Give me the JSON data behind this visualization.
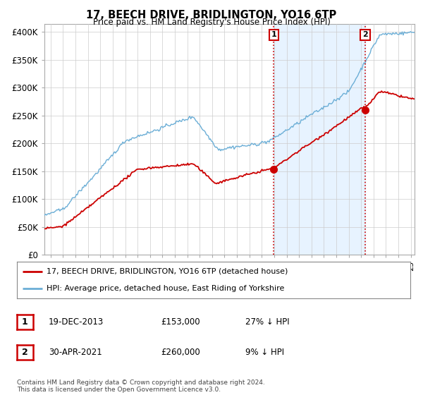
{
  "title": "17, BEECH DRIVE, BRIDLINGTON, YO16 6TP",
  "subtitle": "Price paid vs. HM Land Registry's House Price Index (HPI)",
  "ylabel_ticks": [
    "£0",
    "£50K",
    "£100K",
    "£150K",
    "£200K",
    "£250K",
    "£300K",
    "£350K",
    "£400K"
  ],
  "ytick_values": [
    0,
    50000,
    100000,
    150000,
    200000,
    250000,
    300000,
    350000,
    400000
  ],
  "ylim": [
    0,
    415000
  ],
  "xlim_start": 1995.5,
  "xlim_end": 2025.3,
  "hpi_color": "#6baed6",
  "hpi_fill_color": "#ddeeff",
  "price_color": "#cc0000",
  "vline_color": "#cc0000",
  "marker1_date": 2013.96,
  "marker1_price": 153000,
  "marker2_date": 2021.33,
  "marker2_price": 260000,
  "legend_line1": "17, BEECH DRIVE, BRIDLINGTON, YO16 6TP (detached house)",
  "legend_line2": "HPI: Average price, detached house, East Riding of Yorkshire",
  "table_row1": [
    "1",
    "19-DEC-2013",
    "£153,000",
    "27% ↓ HPI"
  ],
  "table_row2": [
    "2",
    "30-APR-2021",
    "£260,000",
    "9% ↓ HPI"
  ],
  "footer": "Contains HM Land Registry data © Crown copyright and database right 2024.\nThis data is licensed under the Open Government Licence v3.0.",
  "background_color": "#ffffff",
  "grid_color": "#cccccc"
}
